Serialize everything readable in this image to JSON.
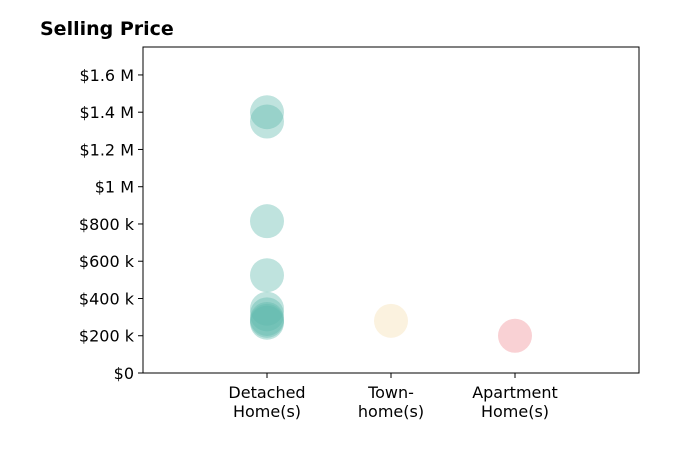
{
  "chart_data": {
    "type": "scatter",
    "title": "Selling Price",
    "xlabel": "",
    "ylabel": "",
    "categories": [
      [
        "Detached",
        "Home(s)"
      ],
      [
        "Town-",
        "home(s)"
      ],
      [
        "Apartment",
        "Home(s)"
      ]
    ],
    "xlim": [
      -1,
      3
    ],
    "ylim": [
      0,
      1750000
    ],
    "yticks": [
      0,
      200000,
      400000,
      600000,
      800000,
      1000000,
      1200000,
      1400000,
      1600000
    ],
    "ytick_labels": [
      "$0",
      "$200 k",
      "$400 k",
      "$600 k",
      "$800 k",
      "$1 M",
      "$1.2 M",
      "$1.4 M",
      "$1.6 M"
    ],
    "grid": false,
    "series": [
      {
        "category_index": 0,
        "color": "#5fb9ad",
        "values": [
          1400000,
          1350000,
          815000,
          525000,
          345000,
          315000,
          290000,
          280000,
          270000
        ]
      },
      {
        "category_index": 1,
        "color": "#f5deb0",
        "values": [
          280000
        ]
      },
      {
        "category_index": 2,
        "color": "#ef8b93",
        "values": [
          200000
        ]
      }
    ]
  }
}
